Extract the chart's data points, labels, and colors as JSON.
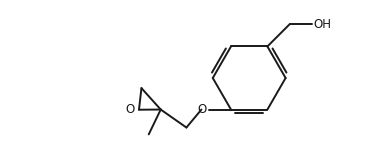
{
  "bg_color": "#ffffff",
  "line_color": "#1a1a1a",
  "line_width": 1.4,
  "text_color": "#1a1a1a",
  "font_size": 8.5,
  "figsize": [
    3.87,
    1.56
  ],
  "dpi": 100,
  "OH_label": "OH",
  "O_label": "O",
  "O_epoxide_label": "O"
}
